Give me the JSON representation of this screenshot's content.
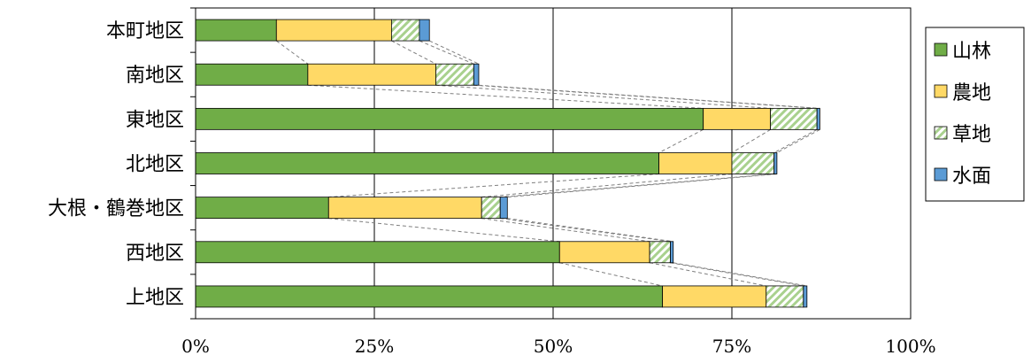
{
  "chart_data": {
    "type": "bar",
    "orientation": "horizontal",
    "stacked": true,
    "normalized": true,
    "categories": [
      "本町地区",
      "南地区",
      "東地区",
      "北地区",
      "大根・鶴巻地区",
      "西地区",
      "上地区"
    ],
    "series": [
      {
        "name": "山林",
        "color": "#70AD47",
        "pattern": "solid",
        "values": [
          11.3,
          15.7,
          71.0,
          64.8,
          18.6,
          50.9,
          65.3
        ]
      },
      {
        "name": "農地",
        "color": "#FFD966",
        "pattern": "solid",
        "values": [
          16.1,
          17.9,
          9.4,
          10.2,
          21.4,
          12.6,
          14.5
        ]
      },
      {
        "name": "草地",
        "color": "#A9D18E",
        "pattern": "diagonal-hatch",
        "values": [
          3.9,
          5.3,
          6.5,
          5.9,
          2.6,
          2.9,
          5.2
        ]
      },
      {
        "name": "水面",
        "color": "#5B9BD5",
        "pattern": "solid",
        "values": [
          1.4,
          0.7,
          0.4,
          0.4,
          1.0,
          0.4,
          0.5
        ]
      }
    ],
    "x_tick_labels": [
      "0%",
      "25%",
      "50%",
      "75%",
      "100%"
    ],
    "xlim": [
      0,
      100
    ],
    "grid": true,
    "series_lines": true,
    "legend_position": "right"
  }
}
